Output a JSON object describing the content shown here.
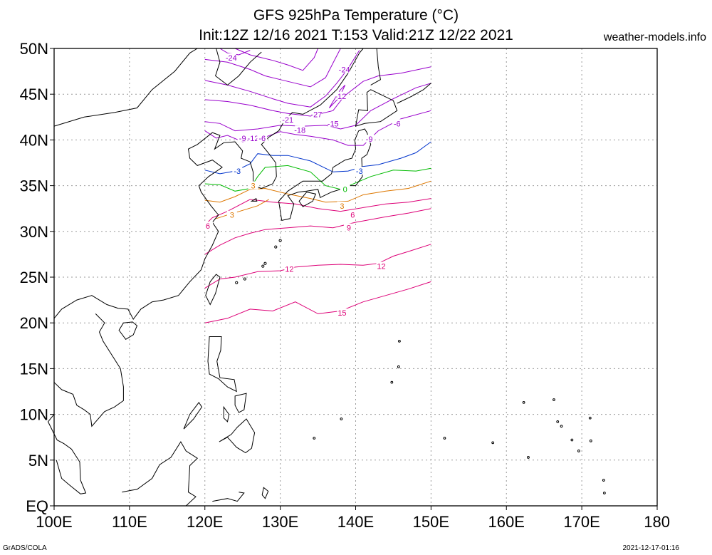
{
  "title": {
    "line1": "GFS 925hPa Temperature (°C)",
    "line2": "Init:12Z 12/16 2021 T:153 Valid:21Z 12/22 2021"
  },
  "site_label": "weather-models.info",
  "footer": {
    "left": "GrADS/COLA",
    "right": "2021-12-17-01:16"
  },
  "axes": {
    "lat_labels": [
      "50N",
      "45N",
      "40N",
      "35N",
      "30N",
      "25N",
      "20N",
      "15N",
      "10N",
      "5N",
      "EQ"
    ],
    "lon_labels": [
      "100E",
      "110E",
      "120E",
      "130E",
      "140E",
      "150E",
      "160E",
      "170E",
      "180"
    ],
    "lat_range": [
      0,
      50
    ],
    "lon_range": [
      100,
      180
    ]
  },
  "data_domain": {
    "lon": [
      120,
      150
    ],
    "lat": [
      20,
      50
    ]
  },
  "contour_labels": [
    {
      "text": "-24",
      "lon": 123.5,
      "lat": 49.0,
      "color": "#9900cc"
    },
    {
      "text": "-24",
      "lon": 138.5,
      "lat": 47.7,
      "color": "#9900cc"
    },
    {
      "text": "-21",
      "lon": 131.0,
      "lat": 42.2,
      "color": "#9900cc"
    },
    {
      "text": "-27",
      "lon": 134.8,
      "lat": 42.8,
      "color": "#9900cc"
    },
    {
      "text": "-12",
      "lon": 138.0,
      "lat": 44.8,
      "color": "#9900cc"
    },
    {
      "text": "-18",
      "lon": 132.6,
      "lat": 41.1,
      "color": "#9900cc"
    },
    {
      "text": "-15",
      "lon": 137.0,
      "lat": 41.8,
      "color": "#9900cc"
    },
    {
      "text": "-9",
      "lon": 141.8,
      "lat": 40.1,
      "color": "#9900cc"
    },
    {
      "text": "-6",
      "lon": 145.5,
      "lat": 41.8,
      "color": "#9900cc"
    },
    {
      "text": "-9",
      "lon": 125.0,
      "lat": 40.2,
      "color": "#9900cc"
    },
    {
      "text": "-12",
      "lon": 126.4,
      "lat": 40.2,
      "color": "#9900cc"
    },
    {
      "text": "-6",
      "lon": 127.6,
      "lat": 40.2,
      "color": "#9900cc"
    },
    {
      "text": "-3",
      "lon": 124.3,
      "lat": 36.6,
      "color": "#0033cc"
    },
    {
      "text": "-3",
      "lon": 140.5,
      "lat": 36.6,
      "color": "#0033cc"
    },
    {
      "text": "0",
      "lon": 138.6,
      "lat": 34.6,
      "color": "#00bb00"
    },
    {
      "text": "3",
      "lon": 126.4,
      "lat": 35.0,
      "color": "#dd7700"
    },
    {
      "text": "3",
      "lon": 123.6,
      "lat": 31.8,
      "color": "#dd7700"
    },
    {
      "text": "3",
      "lon": 138.2,
      "lat": 32.8,
      "color": "#dd7700"
    },
    {
      "text": "6",
      "lon": 139.6,
      "lat": 31.8,
      "color": "#dd0077"
    },
    {
      "text": "6",
      "lon": 120.4,
      "lat": 30.6,
      "color": "#dd0077"
    },
    {
      "text": "9",
      "lon": 139.1,
      "lat": 30.4,
      "color": "#dd0077"
    },
    {
      "text": "12",
      "lon": 131.2,
      "lat": 25.9,
      "color": "#dd0077"
    },
    {
      "text": "12",
      "lon": 143.4,
      "lat": 26.2,
      "color": "#dd0077"
    },
    {
      "text": "15",
      "lon": 138.2,
      "lat": 21.1,
      "color": "#dd0077"
    }
  ],
  "colors": {
    "cold": "#9900cc",
    "minus3": "#0033cc",
    "zero": "#00bb00",
    "plus3": "#dd7700",
    "warm": "#dd0077",
    "coast": "#000000",
    "grid": "#999999"
  }
}
